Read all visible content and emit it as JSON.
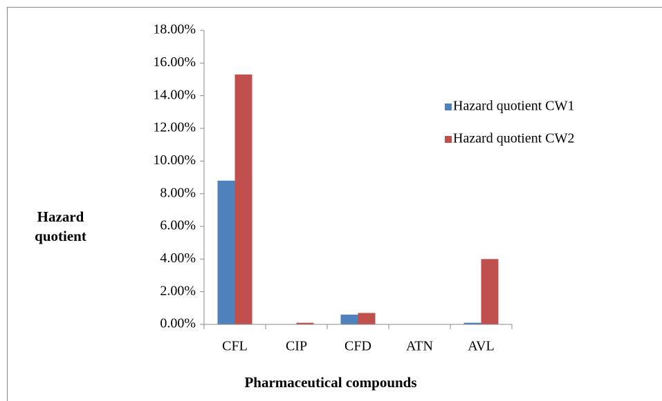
{
  "chart_data": {
    "type": "bar",
    "x_label": "Pharmaceutical compounds",
    "y_label": "Hazard quotient",
    "categories": [
      "CFL",
      "CIP",
      "CFD",
      "ATN",
      "AVL"
    ],
    "series": [
      {
        "name": "Hazard quotient CW1",
        "color": "#4f81bd",
        "values": [
          8.8,
          0,
          0.6,
          0,
          0.1
        ]
      },
      {
        "name": "Hazard quotient CW2",
        "color": "#c0504d",
        "values": [
          15.3,
          0.1,
          0.7,
          0,
          4.0
        ]
      }
    ],
    "ylim": [
      0,
      18
    ],
    "yticks": [
      {
        "value": 0,
        "label": "0.00%"
      },
      {
        "value": 2,
        "label": "2.00%"
      },
      {
        "value": 4,
        "label": "4.00%"
      },
      {
        "value": 6,
        "label": "6.00%"
      },
      {
        "value": 8,
        "label": "8.00%"
      },
      {
        "value": 10,
        "label": "10.00%"
      },
      {
        "value": 12,
        "label": "12.00%"
      },
      {
        "value": 14,
        "label": "14.00%"
      },
      {
        "value": 16,
        "label": "16.00%"
      },
      {
        "value": 18,
        "label": "18.00%"
      }
    ],
    "grid": false,
    "legend": "right"
  }
}
